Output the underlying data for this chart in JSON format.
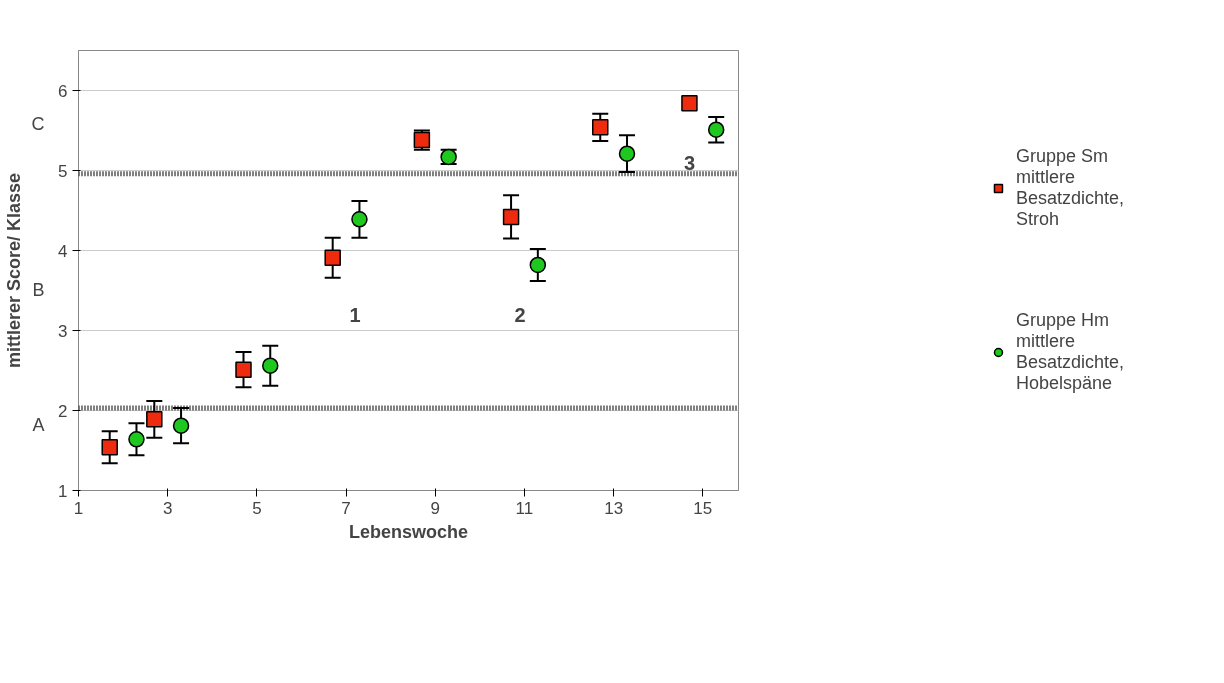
{
  "chart_data": {
    "type": "scatter",
    "xlabel": "Lebenswoche",
    "ylabel": "mittlerer Score/ Klasse",
    "xlim": [
      1,
      15.8
    ],
    "ylim": [
      1,
      6.5
    ],
    "xticks": [
      1,
      3,
      5,
      7,
      9,
      11,
      13,
      15
    ],
    "yticks": [
      1,
      2,
      3,
      4,
      5,
      6
    ],
    "grid": "y",
    "legend": "right",
    "series": [
      {
        "name": "Gruppe Sm mittlere Besatzdichte, Stroh",
        "color": "#ee2a0f",
        "marker": "square",
        "x": [
          1.7,
          2.7,
          4.7,
          6.7,
          8.7,
          10.7,
          12.7,
          14.7
        ],
        "values": [
          1.54,
          1.89,
          2.51,
          3.91,
          5.38,
          4.42,
          5.54,
          5.84
        ],
        "errors": [
          0.2,
          0.23,
          0.22,
          0.25,
          0.12,
          0.27,
          0.17,
          null
        ]
      },
      {
        "name": "Gruppe Hm mittlere Besatzdichte, Hobelspäne",
        "color": "#1ec81e",
        "marker": "circle",
        "x": [
          2.3,
          3.3,
          5.3,
          7.3,
          9.3,
          11.3,
          13.3,
          15.3
        ],
        "values": [
          1.64,
          1.81,
          2.56,
          4.39,
          5.17,
          3.82,
          5.21,
          5.51
        ],
        "errors": [
          0.2,
          0.22,
          0.25,
          0.23,
          0.09,
          0.2,
          0.23,
          0.16
        ]
      }
    ],
    "ref_lines": [
      {
        "axis": "y",
        "value": 2.03,
        "color": "#000000",
        "line_style": "dotted"
      },
      {
        "axis": "y",
        "value": 4.96,
        "color": "#000000",
        "line_style": "dotted"
      }
    ],
    "annotations": [
      "1",
      "2",
      "3",
      "A",
      "B",
      "C"
    ]
  }
}
